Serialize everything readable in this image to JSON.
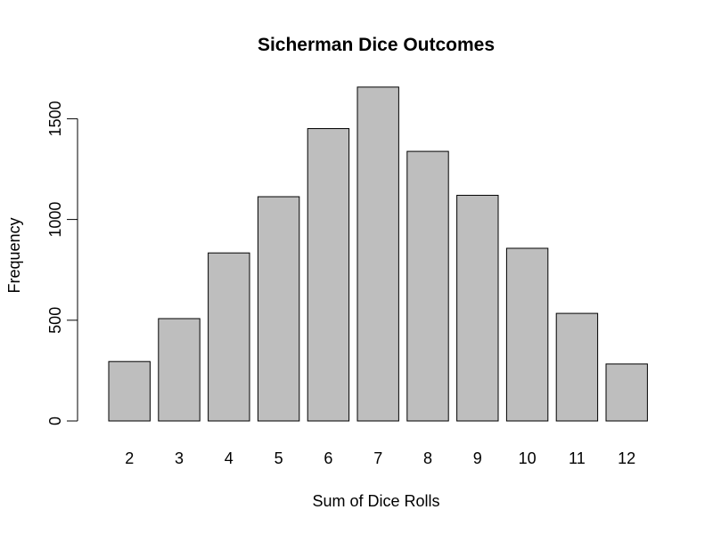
{
  "chart_data": {
    "type": "bar",
    "title": "Sicherman Dice Outcomes",
    "xlabel": "Sum of Dice Rolls",
    "ylabel": "Frequency",
    "categories": [
      "2",
      "3",
      "4",
      "5",
      "6",
      "7",
      "8",
      "9",
      "10",
      "11",
      "12"
    ],
    "values": [
      295,
      508,
      834,
      1113,
      1451,
      1657,
      1338,
      1120,
      857,
      534,
      283
    ],
    "ylim": [
      0,
      1750
    ],
    "yticks": [
      0,
      500,
      1000,
      1500
    ],
    "grid": false,
    "bar_color": "#bebebe"
  }
}
